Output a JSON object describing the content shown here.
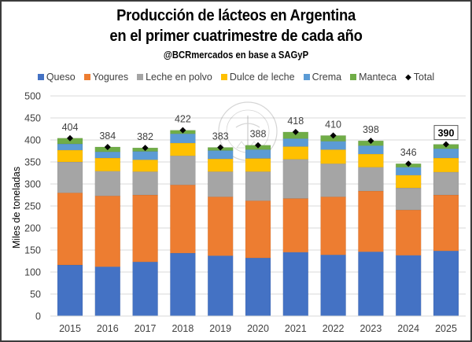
{
  "chart_data": {
    "type": "bar",
    "stacked": true,
    "title": "Producción de lácteos en Argentina",
    "title_line2": "en el primer cuatrimestre de cada año",
    "subtitle": "@BCRmercados en base a SAGyP",
    "xlabel": "",
    "ylabel": "Miles de toneladas",
    "ylim": [
      0,
      500
    ],
    "yticks": [
      0,
      50,
      100,
      150,
      200,
      250,
      300,
      350,
      400,
      450,
      500
    ],
    "grid": true,
    "legend_position": "top",
    "categories": [
      "2015",
      "2016",
      "2017",
      "2018",
      "2019",
      "2020",
      "2021",
      "2022",
      "2023",
      "2024",
      "2025"
    ],
    "series": [
      {
        "name": "Queso",
        "color": "#4472C4",
        "values": [
          116,
          112,
          123,
          143,
          137,
          132,
          145,
          139,
          146,
          138,
          148
        ]
      },
      {
        "name": "Yogures",
        "color": "#ED7D31",
        "values": [
          164,
          161,
          152,
          155,
          134,
          130,
          122,
          132,
          138,
          103,
          127
        ]
      },
      {
        "name": "Leche en polvo",
        "color": "#A5A5A5",
        "values": [
          70,
          56,
          53,
          66,
          57,
          66,
          89,
          75,
          54,
          50,
          52
        ]
      },
      {
        "name": "Dulce de leche",
        "color": "#FFC000",
        "values": [
          27,
          30,
          27,
          29,
          29,
          30,
          29,
          32,
          30,
          29,
          32
        ]
      },
      {
        "name": "Crema",
        "color": "#5B9BD5",
        "values": [
          14,
          14,
          19,
          21,
          19,
          20,
          18,
          19,
          19,
          18,
          21
        ]
      },
      {
        "name": "Manteca",
        "color": "#70AD47",
        "values": [
          13,
          11,
          8,
          8,
          7,
          10,
          15,
          13,
          11,
          8,
          10
        ]
      }
    ],
    "total": {
      "name": "Total",
      "marker": "diamond",
      "color": "#000000",
      "values": [
        404,
        384,
        382,
        422,
        383,
        388,
        418,
        410,
        398,
        346,
        390
      ],
      "labels": [
        "404",
        "384",
        "382",
        "422",
        "383",
        "388",
        "418",
        "410",
        "398",
        "346",
        "390"
      ],
      "highlighted_label_index": 10
    },
    "watermark": "BOLSA DE COMERCIO DE ROSARIO seal"
  }
}
